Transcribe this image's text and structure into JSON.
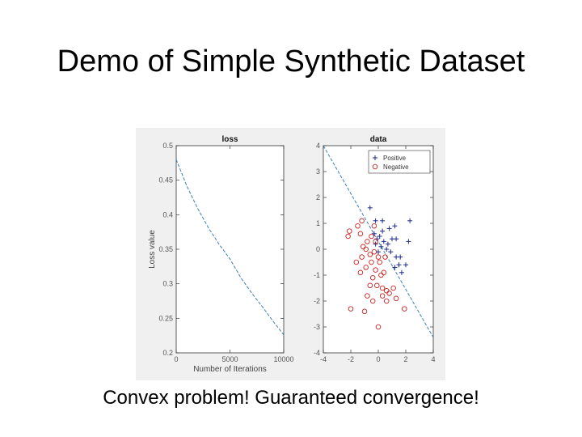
{
  "slide": {
    "title": "Demo of Simple Synthetic Dataset",
    "caption": "Convex problem! Guaranteed convergence!"
  },
  "chart_data": [
    {
      "type": "line",
      "title": "loss",
      "xlabel": "Number of Iterations",
      "ylabel": "Loss value",
      "xlim": [
        0,
        10000
      ],
      "ylim": [
        0.2,
        0.5
      ],
      "xticks": [
        "0",
        "5000",
        "10000"
      ],
      "yticks": [
        "0.2",
        "0.25",
        "0.3",
        "0.35",
        "0.4",
        "0.45",
        "0.5"
      ],
      "line_color": "#3b7fb5",
      "line_style": "dashed",
      "grid": false,
      "series": [
        {
          "x": [
            0,
            1000,
            2000,
            3000,
            4000,
            5000,
            6000,
            7000,
            8000,
            9000,
            10000
          ],
          "values": [
            0.48,
            0.441,
            0.409,
            0.381,
            0.357,
            0.336,
            0.309,
            0.287,
            0.267,
            0.246,
            0.226
          ]
        }
      ]
    },
    {
      "type": "scatter",
      "title": "data",
      "xlim": [
        -4,
        4
      ],
      "ylim": [
        -4,
        4
      ],
      "xticks": [
        "-4",
        "-2",
        "0",
        "2",
        "4"
      ],
      "yticks": [
        "-4",
        "-3",
        "-2",
        "-1",
        "0",
        "1",
        "2",
        "3",
        "4"
      ],
      "legend_position": "top-right",
      "grid": false,
      "boundary": {
        "x": [
          -4,
          4
        ],
        "y": [
          4,
          -3.4
        ],
        "color": "#3b7fb5",
        "style": "dashed"
      },
      "series": [
        {
          "name": "Positive",
          "marker": "+",
          "color": "#1f2a8a",
          "points": [
            [
              -0.6,
              1.6
            ],
            [
              -0.2,
              1.1
            ],
            [
              0.3,
              1.1
            ],
            [
              0.8,
              0.8
            ],
            [
              1.2,
              0.9
            ],
            [
              1.3,
              0.4
            ],
            [
              -0.3,
              0.6
            ],
            [
              0.1,
              0.5
            ],
            [
              0.4,
              0.3
            ],
            [
              0.7,
              0.2
            ],
            [
              1.0,
              0.4
            ],
            [
              -0.2,
              0.2
            ],
            [
              0.2,
              0.1
            ],
            [
              0.6,
              0.0
            ],
            [
              0.9,
              -0.1
            ],
            [
              1.3,
              -0.3
            ],
            [
              1.6,
              -0.3
            ],
            [
              2.0,
              -0.6
            ],
            [
              1.5,
              -0.6
            ],
            [
              1.2,
              -0.7
            ],
            [
              0.3,
              0.7
            ],
            [
              -0.1,
              0.4
            ],
            [
              1.7,
              -0.9
            ],
            [
              2.2,
              0.3
            ],
            [
              2.3,
              1.1
            ],
            [
              0.0,
              -0.1
            ]
          ]
        },
        {
          "name": "Negative",
          "marker": "o",
          "color": "#cc2222",
          "points": [
            [
              -1.2,
              1.1
            ],
            [
              -1.5,
              0.9
            ],
            [
              -2.1,
              0.7
            ],
            [
              -2.2,
              0.5
            ],
            [
              -1.3,
              0.6
            ],
            [
              -0.8,
              0.3
            ],
            [
              -0.5,
              0.5
            ],
            [
              -0.2,
              0.3
            ],
            [
              -0.9,
              0.0
            ],
            [
              -0.6,
              -0.2
            ],
            [
              -0.3,
              -0.1
            ],
            [
              0.0,
              -0.3
            ],
            [
              -1.2,
              -0.3
            ],
            [
              -1.6,
              -0.5
            ],
            [
              -1.3,
              -0.9
            ],
            [
              -0.9,
              -0.7
            ],
            [
              -0.5,
              -0.5
            ],
            [
              -0.2,
              -0.8
            ],
            [
              0.1,
              -0.5
            ],
            [
              0.4,
              -0.9
            ],
            [
              0.2,
              -1.0
            ],
            [
              -0.4,
              -1.1
            ],
            [
              -0.6,
              -1.4
            ],
            [
              -0.1,
              -1.4
            ],
            [
              0.3,
              -1.5
            ],
            [
              0.6,
              -1.6
            ],
            [
              -0.8,
              -1.8
            ],
            [
              -0.4,
              -2.0
            ],
            [
              0.3,
              -1.8
            ],
            [
              0.8,
              -1.7
            ],
            [
              1.1,
              -1.5
            ],
            [
              1.3,
              -1.9
            ],
            [
              -1.0,
              -2.4
            ],
            [
              0.6,
              -2.0
            ],
            [
              -2.0,
              -2.3
            ],
            [
              1.9,
              -2.3
            ],
            [
              0.0,
              -3.0
            ],
            [
              -0.3,
              0.9
            ],
            [
              0.5,
              -0.3
            ],
            [
              -1.1,
              0.1
            ]
          ]
        }
      ]
    }
  ]
}
